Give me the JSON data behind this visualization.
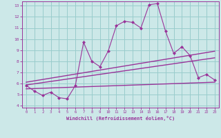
{
  "xlabel": "Windchill (Refroidissement éolien,°C)",
  "xlim": [
    -0.5,
    23.5
  ],
  "ylim": [
    3.8,
    13.4
  ],
  "xticks": [
    0,
    1,
    2,
    3,
    4,
    5,
    6,
    7,
    8,
    9,
    10,
    11,
    12,
    13,
    14,
    15,
    16,
    17,
    18,
    19,
    20,
    21,
    22,
    23
  ],
  "yticks": [
    4,
    5,
    6,
    7,
    8,
    9,
    10,
    11,
    12,
    13
  ],
  "bg_color": "#cce8e8",
  "line_color": "#993399",
  "grid_color": "#99cccc",
  "line1_x": [
    0,
    1,
    2,
    3,
    4,
    5,
    6,
    7,
    8,
    9,
    10,
    11,
    12,
    13,
    14,
    15,
    16,
    17,
    18,
    19,
    20,
    21,
    22,
    23
  ],
  "line1_y": [
    5.8,
    5.3,
    4.9,
    5.2,
    4.7,
    4.6,
    5.8,
    9.7,
    8.0,
    7.5,
    8.9,
    11.2,
    11.6,
    11.5,
    11.0,
    13.1,
    13.2,
    10.7,
    8.7,
    9.3,
    8.5,
    6.5,
    6.8,
    6.3
  ],
  "line2_x": [
    0,
    23
  ],
  "line2_y": [
    5.85,
    8.3
  ],
  "line3_x": [
    0,
    23
  ],
  "line3_y": [
    5.5,
    6.1
  ],
  "line4_x": [
    0,
    23
  ],
  "line4_y": [
    6.1,
    8.9
  ]
}
